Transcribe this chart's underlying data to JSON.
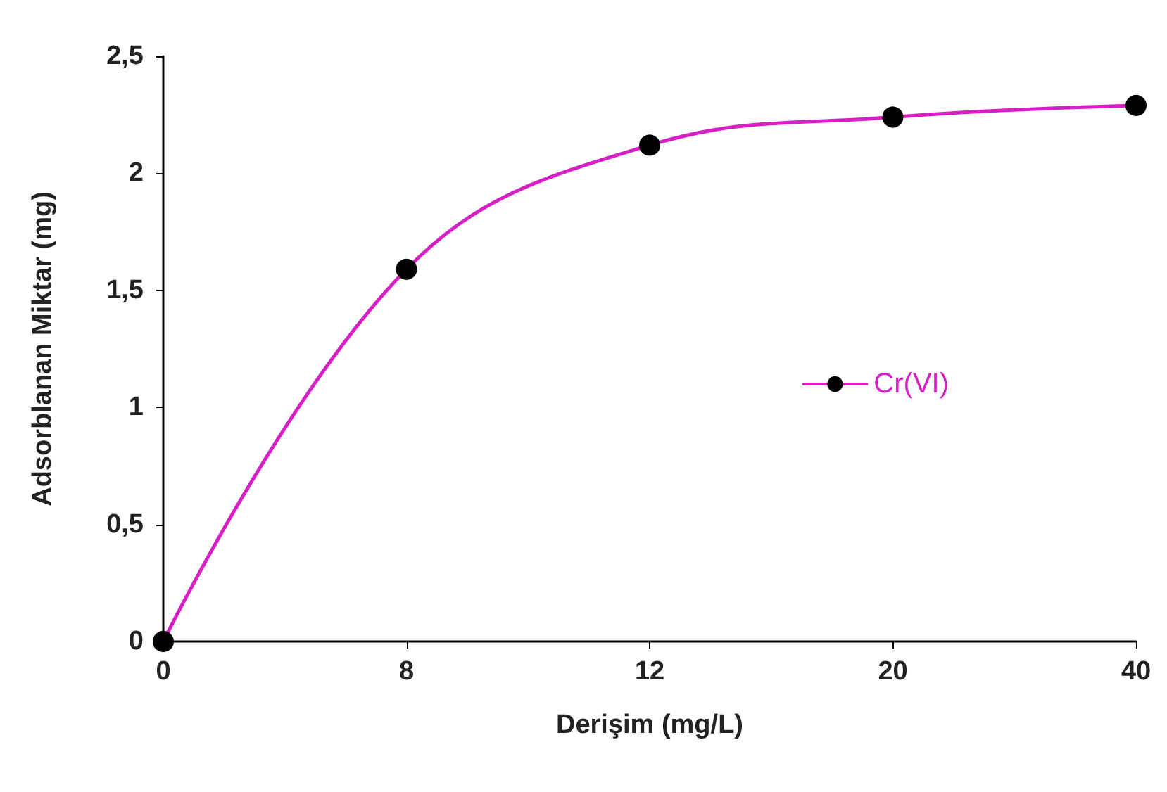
{
  "chart_data": {
    "type": "line",
    "xlabel": "Derişim (mg/L)",
    "ylabel": "Adsorblanan Miktar (mg)",
    "categories": [
      "0",
      "8",
      "12",
      "20",
      "40"
    ],
    "series": [
      {
        "name": "Cr(VI)",
        "color": "#d61fc4",
        "values": [
          0,
          1.59,
          2.12,
          2.24,
          2.29
        ]
      }
    ],
    "ylim": [
      0,
      2.5
    ],
    "yticks": [
      {
        "value": 0,
        "label": "0"
      },
      {
        "value": 0.5,
        "label": "0,5"
      },
      {
        "value": 1,
        "label": "1"
      },
      {
        "value": 1.5,
        "label": "1,5"
      },
      {
        "value": 2,
        "label": "2"
      },
      {
        "value": 2.5,
        "label": "2,5"
      }
    ],
    "grid": false,
    "legend": "right",
    "marker": "circle",
    "line_style": "solid"
  }
}
